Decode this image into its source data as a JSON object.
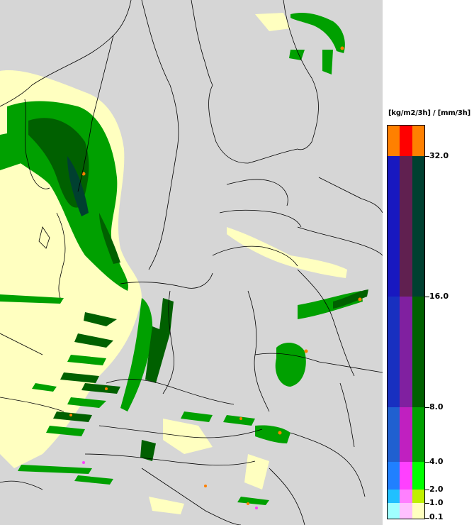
{
  "legend": {
    "units": "[kg/m2/3h] / [mm/3h]",
    "ticks": [
      "32.0",
      "16.0",
      "8.0",
      "4.0",
      "2.0",
      "1.0",
      "0.1"
    ],
    "levels": [
      {
        "value": 32.0,
        "colors": [
          "#ff8000",
          "#ff0000",
          "#ff8000"
        ]
      },
      {
        "value": 16.0,
        "colors": [
          "#1818c0",
          "#602050",
          "#004030"
        ]
      },
      {
        "value": 8.0,
        "colors": [
          "#1830c0",
          "#8020a0",
          "#006000"
        ]
      },
      {
        "value": 4.0,
        "colors": [
          "#2060d0",
          "#c020c0",
          "#00a000"
        ]
      },
      {
        "value": 2.0,
        "colors": [
          "#2080ff",
          "#ff40ff",
          "#00ff00"
        ]
      },
      {
        "value": 1.0,
        "colors": [
          "#20c0ff",
          "#ff80ff",
          "#c0f000"
        ]
      },
      {
        "value": 0.1,
        "colors": [
          "#a0ffff",
          "#ffc0ff",
          "#ffffc0"
        ]
      }
    ]
  },
  "colors": {
    "land": "#d6d6d6",
    "border": "#000000",
    "light_precip": "#ffffc0",
    "green_light": "#60d040",
    "green_mid": "#00a000",
    "green_dark": "#006000",
    "green_darker": "#004030",
    "orange": "#ff8000"
  }
}
